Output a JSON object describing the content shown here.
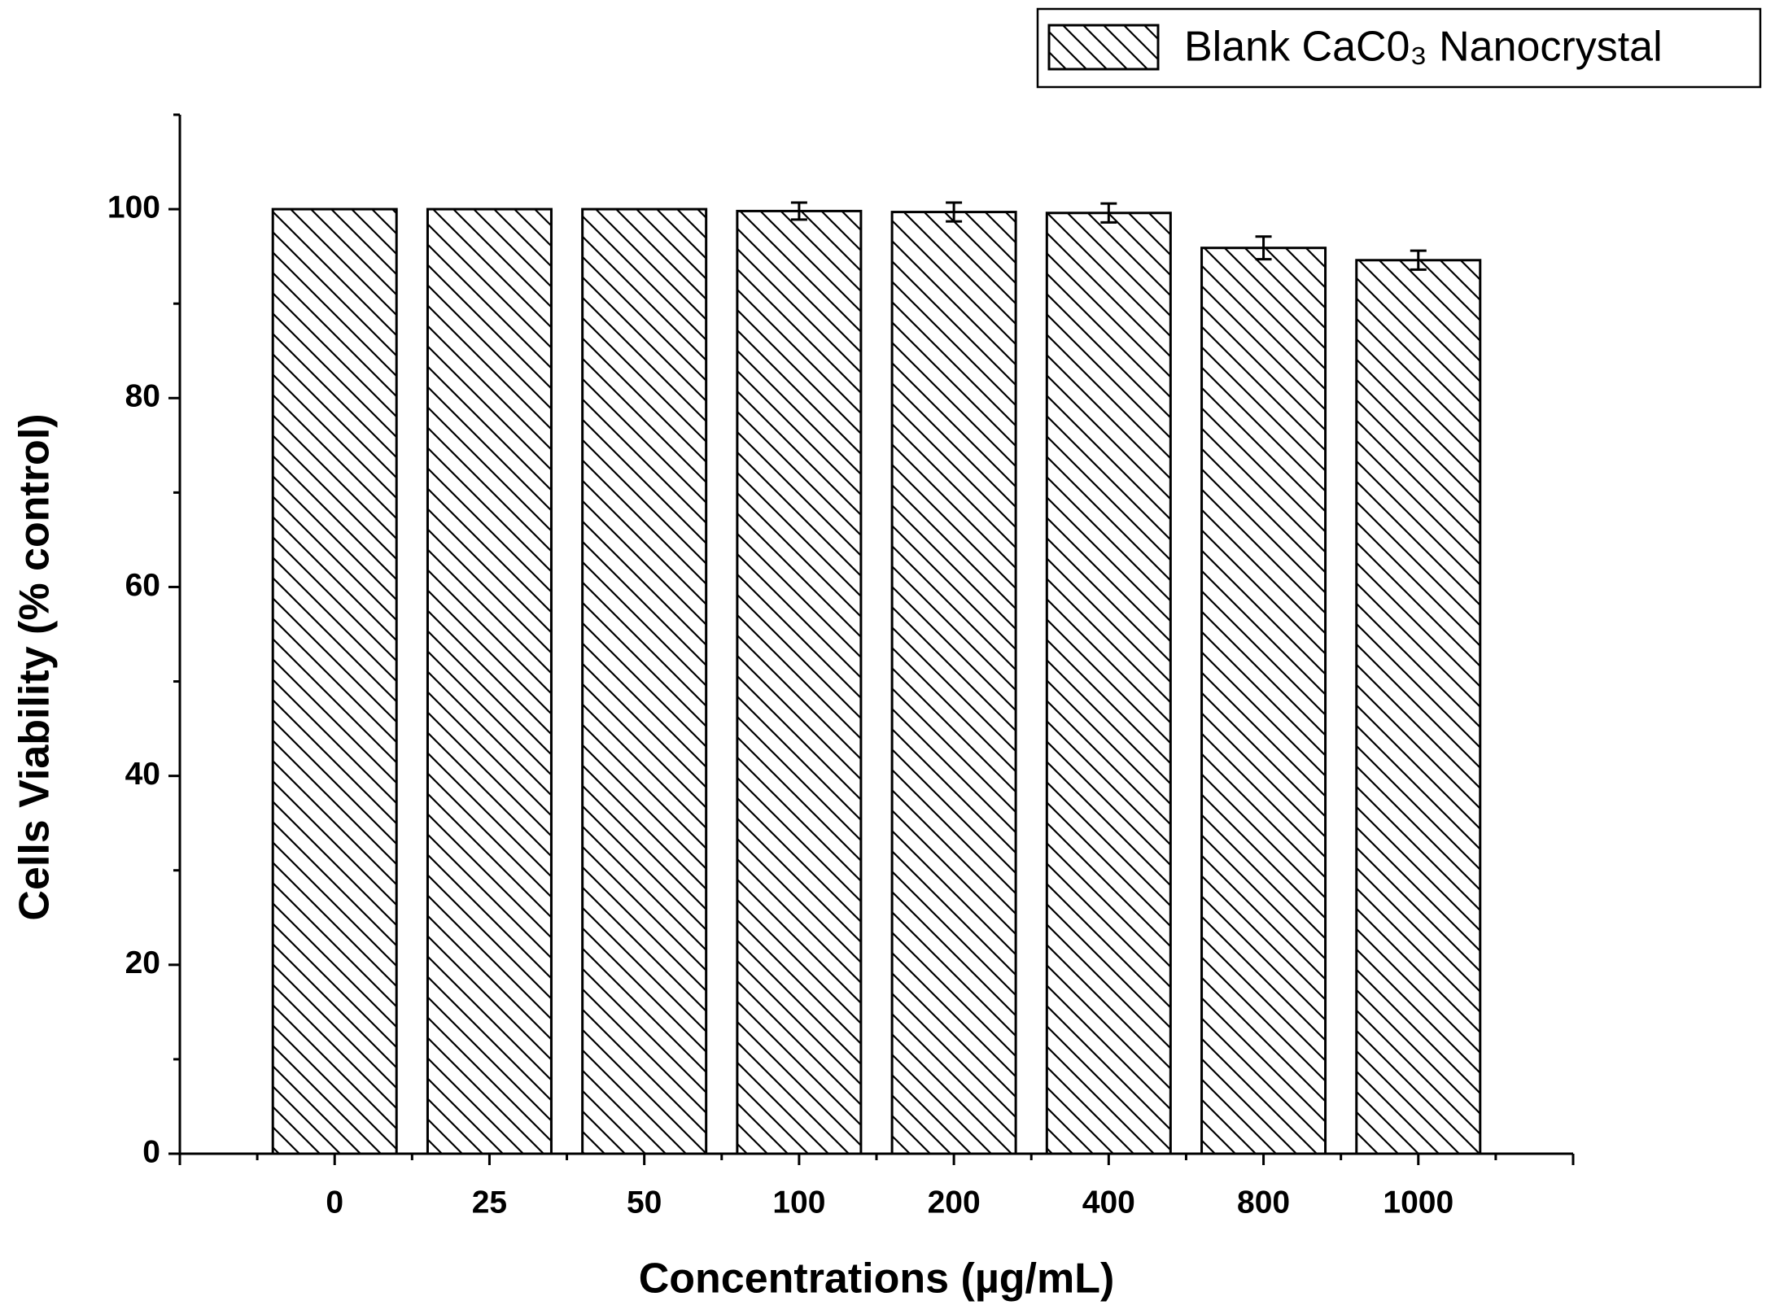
{
  "chart_data": {
    "type": "bar",
    "xlabel": "Concentrations (µg/mL)",
    "ylabel": "Cells Viability (% control)",
    "categories": [
      "0",
      "25",
      "50",
      "100",
      "200",
      "400",
      "800",
      "1000"
    ],
    "series": [
      {
        "name": "Blank CaC0₃ Nanocrystal",
        "color": "#000000",
        "values": [
          100,
          100,
          100,
          99.8,
          99.7,
          99.6,
          95.9,
          94.6
        ],
        "errors": [
          0,
          0,
          0,
          0.9,
          1.0,
          1.0,
          1.2,
          1.0
        ]
      }
    ],
    "ylim": [
      0,
      110
    ],
    "yticks": [
      0,
      20,
      40,
      60,
      80,
      100
    ],
    "yminorticks": [
      10,
      30,
      50,
      70,
      90,
      110
    ],
    "legend": "top-right"
  }
}
